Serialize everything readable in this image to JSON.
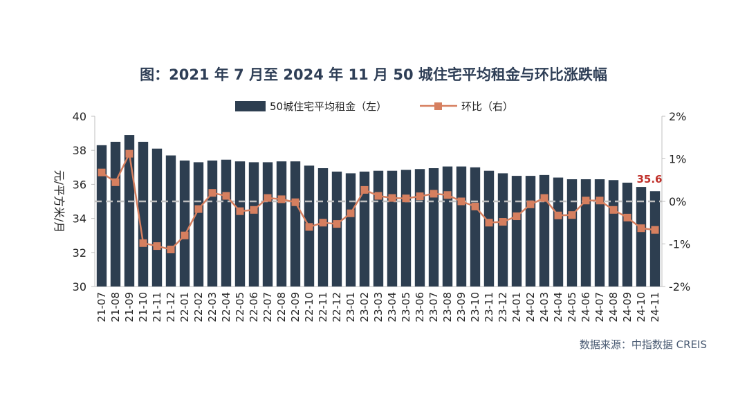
{
  "title": "图：2021 年 7 月至 2024 年 11 月 50 城住宅平均租金与环比涨跌幅",
  "source": "数据来源：中指数据 CREIS",
  "colors": {
    "bar": "#2d3e50",
    "line": "#d67f5f",
    "zero_line": "#bfbfbf",
    "highlight": "#c0302a"
  },
  "chart_data": {
    "type": "bar",
    "categories": [
      "21-07",
      "21-08",
      "21-09",
      "21-10",
      "21-11",
      "21-12",
      "22-01",
      "22-02",
      "22-03",
      "22-04",
      "22-05",
      "22-06",
      "22-07",
      "22-08",
      "22-09",
      "22-10",
      "22-11",
      "22-12",
      "23-01",
      "23-02",
      "23-03",
      "23-04",
      "23-05",
      "23-06",
      "23-07",
      "23-08",
      "23-09",
      "23-10",
      "23-11",
      "23-12",
      "24-01",
      "24-02",
      "24-03",
      "24-04",
      "24-05",
      "24-06",
      "24-07",
      "24-08",
      "24-09",
      "24-10",
      "24-11"
    ],
    "series": [
      {
        "name": "50城住宅平均租金（左）",
        "type": "bar",
        "axis": "left",
        "values": [
          38.3,
          38.5,
          38.9,
          38.5,
          38.1,
          37.7,
          37.4,
          37.3,
          37.4,
          37.45,
          37.35,
          37.3,
          37.3,
          37.35,
          37.35,
          37.1,
          36.95,
          36.75,
          36.65,
          36.75,
          36.8,
          36.8,
          36.85,
          36.9,
          36.95,
          37.05,
          37.05,
          37.0,
          36.8,
          36.65,
          36.5,
          36.5,
          36.55,
          36.4,
          36.3,
          36.3,
          36.3,
          36.25,
          36.1,
          35.85,
          35.6
        ]
      },
      {
        "name": "环比（右）",
        "type": "line",
        "axis": "right",
        "values": [
          0.68,
          0.45,
          1.12,
          -0.98,
          -1.05,
          -1.13,
          -0.8,
          -0.18,
          0.2,
          0.13,
          -0.23,
          -0.2,
          0.08,
          0.05,
          -0.02,
          -0.6,
          -0.5,
          -0.53,
          -0.28,
          0.27,
          0.13,
          0.08,
          0.07,
          0.12,
          0.18,
          0.15,
          0.0,
          -0.12,
          -0.5,
          -0.48,
          -0.35,
          -0.07,
          0.08,
          -0.33,
          -0.32,
          0.02,
          0.02,
          -0.2,
          -0.38,
          -0.63,
          -0.67
        ]
      }
    ],
    "left_axis": {
      "label": "元/平方米/月",
      "min": 30,
      "max": 40,
      "ticks": [
        "30",
        "32",
        "34",
        "36",
        "38",
        "40"
      ]
    },
    "right_axis": {
      "min": -2,
      "max": 2,
      "ticks": [
        "-2%",
        "-1%",
        "0%",
        "1%",
        "2%"
      ]
    },
    "annotation": {
      "text": "35.6",
      "category": "24-11"
    },
    "legend_position": "top-center",
    "grid": false
  }
}
